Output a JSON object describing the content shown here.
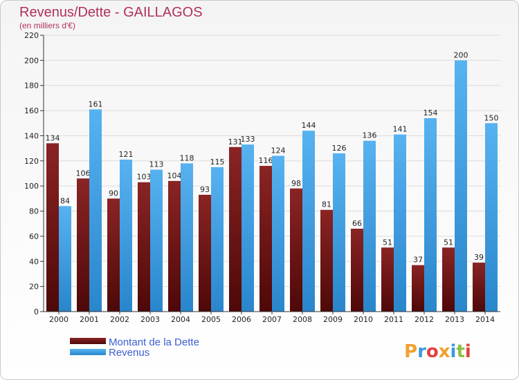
{
  "chart_data": {
    "type": "bar",
    "title": "Revenus/Dette - GAILLAGOS",
    "subtitle": "(en milliers d'€)",
    "categories": [
      "2000",
      "2001",
      "2002",
      "2003",
      "2004",
      "2005",
      "2006",
      "2007",
      "2008",
      "2009",
      "2010",
      "2011",
      "2012",
      "2013",
      "2014"
    ],
    "series": [
      {
        "name": "Montant de la Dette",
        "color": "#7a1a1a",
        "values": [
          134,
          106,
          90,
          103,
          104,
          93,
          131,
          116,
          98,
          81,
          66,
          51,
          37,
          51,
          39
        ]
      },
      {
        "name": "Revenus",
        "color": "#3a9be0",
        "values": [
          84,
          161,
          121,
          113,
          118,
          115,
          133,
          124,
          144,
          126,
          136,
          141,
          154,
          200,
          150
        ]
      }
    ],
    "ylim": [
      0,
      220
    ],
    "yticks": [
      0,
      20,
      40,
      60,
      80,
      100,
      120,
      140,
      160,
      180,
      200,
      220
    ],
    "grid": true,
    "legend_position": "bottom-left"
  },
  "logo": {
    "letters": [
      "P",
      "r",
      "o",
      "x",
      "i",
      "t",
      "i"
    ],
    "colors": [
      "#f0a030",
      "#3a9be0",
      "#e04040",
      "#f0a030",
      "#3a9be0",
      "#8cc040",
      "#e04040"
    ]
  }
}
